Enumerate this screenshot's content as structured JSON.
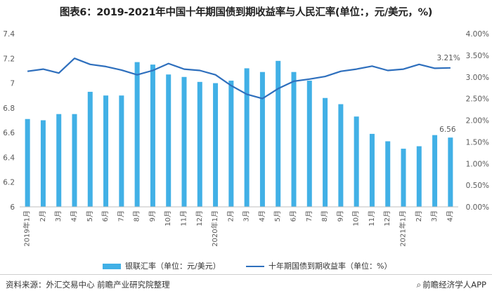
{
  "title": "图表6：2019-2021年中国十年期国债到期收益率与人民汇率(单位：，元/美元，%)",
  "colors": {
    "bar": "#41b0e6",
    "line": "#2e6fbd",
    "text": "#595959"
  },
  "chart_data": {
    "type": "bar+line",
    "categories": [
      "2019年1月",
      "2月",
      "3月",
      "4月",
      "5月",
      "6月",
      "7月",
      "8月",
      "9月",
      "10月",
      "11月",
      "12月",
      "2020年1月",
      "2月",
      "3月",
      "4月",
      "5月",
      "6月",
      "7月",
      "8月",
      "9月",
      "10月",
      "11月",
      "12月",
      "2021年1月",
      "2月",
      "3月",
      "4月"
    ],
    "left_axis": {
      "ticks": [
        "6",
        "6.2",
        "6.4",
        "6.6",
        "6.8",
        "7",
        "7.2",
        "7.4"
      ],
      "ylim": [
        6,
        7.4
      ]
    },
    "right_axis": {
      "ticks": [
        "0.00%",
        "0.50%",
        "1.00%",
        "1.50%",
        "2.00%",
        "2.50%",
        "3.00%",
        "3.50%",
        "4.00%"
      ],
      "ylim": [
        0,
        4
      ]
    },
    "series": [
      {
        "name": "银联汇率（单位：元/美元）",
        "type": "bar",
        "axis": "left",
        "values": [
          6.71,
          6.7,
          6.75,
          6.75,
          6.93,
          6.9,
          6.9,
          7.17,
          7.15,
          7.07,
          7.05,
          7.01,
          7.0,
          7.02,
          7.12,
          7.09,
          7.18,
          7.09,
          7.02,
          6.88,
          6.83,
          6.73,
          6.59,
          6.53,
          6.47,
          6.49,
          6.58,
          6.56
        ]
      },
      {
        "name": "十年期国债到期收益率（单位：%）",
        "type": "line",
        "axis": "right",
        "values": [
          3.13,
          3.18,
          3.09,
          3.43,
          3.29,
          3.24,
          3.16,
          3.05,
          3.15,
          3.31,
          3.18,
          3.15,
          3.05,
          2.8,
          2.6,
          2.5,
          2.73,
          2.9,
          2.95,
          3.01,
          3.13,
          3.18,
          3.25,
          3.15,
          3.18,
          3.29,
          3.2,
          3.21
        ]
      }
    ],
    "data_labels": {
      "last_line": "3.21%",
      "last_bar": "6.56"
    },
    "grid": false,
    "legend": "bottom"
  },
  "legend": {
    "bar_label": "银联汇率（单位：元/美元）",
    "line_label": "十年期国债到期收益率（单位：%）"
  },
  "footer": {
    "source": "资料来源：外汇交易中心 前瞻产业研究院整理",
    "brand": "前瞻经济学人APP",
    "brand_icon": "search-icon"
  }
}
